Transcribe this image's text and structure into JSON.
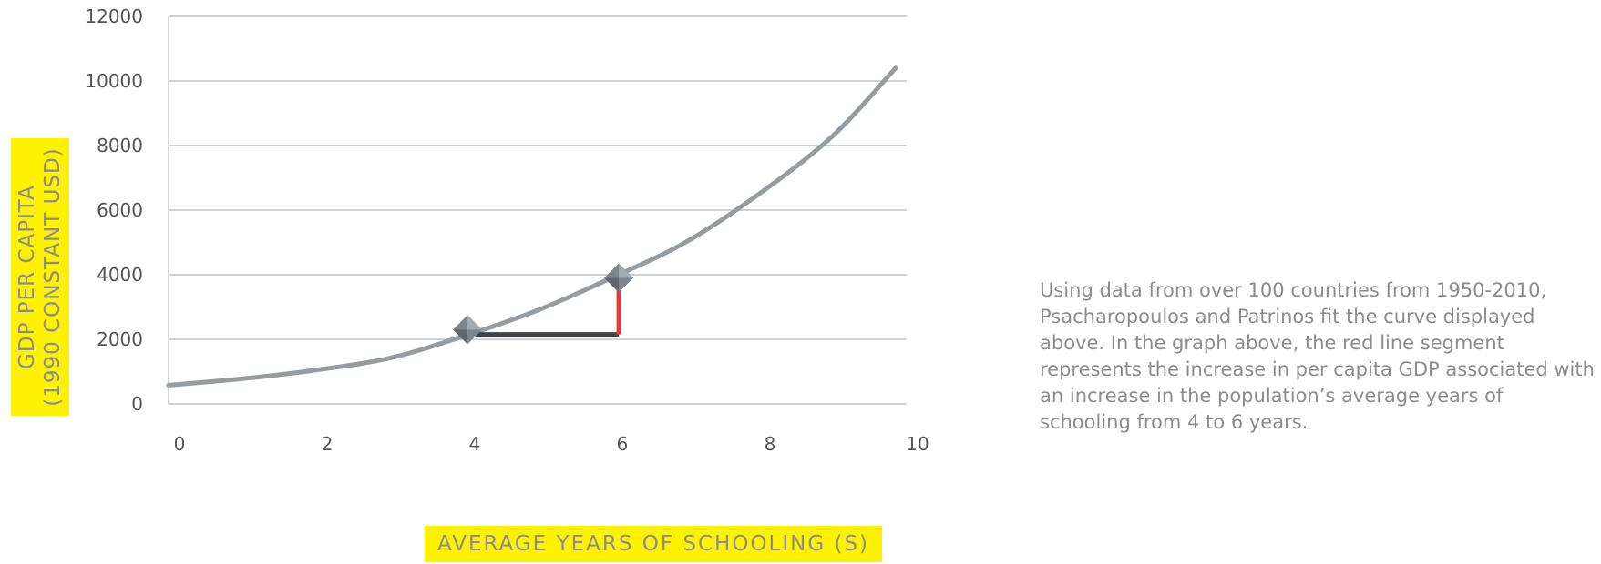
{
  "chart_data": {
    "type": "line",
    "xlabel": "AVERAGE YEARS OF SCHOOLING (S)",
    "ylabel_lines": [
      "GDP PER CAPITA",
      "(1990 CONSTANT USD)"
    ],
    "xlim": [
      0,
      10
    ],
    "ylim": [
      0,
      12000
    ],
    "x_ticks": [
      "0",
      "2",
      "4",
      "6",
      "8",
      "10"
    ],
    "y_ticks": [
      "0",
      "2000",
      "4000",
      "6000",
      "8000",
      "10000",
      "12000"
    ],
    "grid": true,
    "series": [
      {
        "x": [
          0,
          1,
          2,
          3,
          4,
          5,
          6,
          7,
          8,
          9,
          9.85
        ],
        "y": [
          580,
          780,
          1050,
          1420,
          2100,
          2900,
          3900,
          5000,
          6500,
          8300,
          10400
        ]
      }
    ],
    "markers": [
      {
        "x": 4.05,
        "y": 2300
      },
      {
        "x": 6.1,
        "y": 3900
      }
    ],
    "horizontal_segment": {
      "x_start": 4.05,
      "x_end": 6.1,
      "y": 2150
    },
    "vertical_segment": {
      "x": 6.1,
      "y_start": 2150,
      "y_end": 3800
    },
    "colors": {
      "curve": "#969ca0",
      "grid": "#cfd1d4",
      "horizontal_segment": "#404448",
      "vertical_segment": "#e8383d",
      "marker": "#7d868d",
      "label_highlight": "#fff200",
      "label_text": "#8a8c90"
    }
  },
  "caption": "Using data from over 100 countries from 1950-2010, Psacharopoulos and Patrinos fit the curve displayed above.  In the graph above, the red line segment represents the increase in per capita GDP associated with an increase in the population’s average years of schooling from 4 to 6 years."
}
